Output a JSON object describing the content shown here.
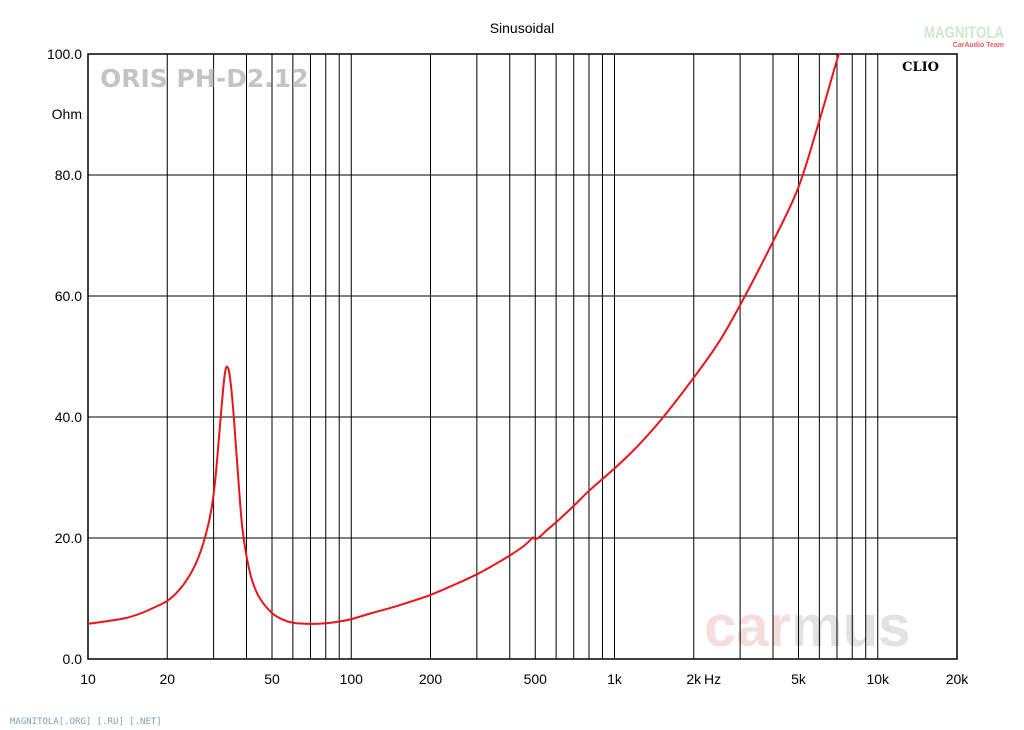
{
  "chart_data": {
    "type": "line",
    "title": "Sinusoidal",
    "ylabel": "Ohm",
    "xlabel": "Hz",
    "x_scale": "log",
    "xlim": [
      10,
      20000
    ],
    "ylim": [
      0,
      100
    ],
    "grid": true,
    "y_ticks": [
      "0.0",
      "20.0",
      "40.0",
      "60.0",
      "80.0",
      "100.0"
    ],
    "x_tick_labels": [
      {
        "value": 10,
        "label": "10"
      },
      {
        "value": 20,
        "label": "20"
      },
      {
        "value": 50,
        "label": "50"
      },
      {
        "value": 100,
        "label": "100"
      },
      {
        "value": 200,
        "label": "200"
      },
      {
        "value": 500,
        "label": "500"
      },
      {
        "value": 1000,
        "label": "1k"
      },
      {
        "value": 2000,
        "label": "2k"
      },
      {
        "value": 5000,
        "label": "5k"
      },
      {
        "value": 10000,
        "label": "10k"
      },
      {
        "value": 20000,
        "label": "20k"
      }
    ],
    "series": [
      {
        "color": "#e8141c",
        "points": [
          [
            10,
            5.8
          ],
          [
            12,
            6.3
          ],
          [
            14,
            6.8
          ],
          [
            16,
            7.6
          ],
          [
            18,
            8.6
          ],
          [
            20,
            9.6
          ],
          [
            22,
            11.2
          ],
          [
            24,
            13.4
          ],
          [
            26,
            16.3
          ],
          [
            28,
            20.5
          ],
          [
            29.5,
            25
          ],
          [
            30.5,
            30
          ],
          [
            31.5,
            37
          ],
          [
            32.5,
            44
          ],
          [
            33.2,
            47.5
          ],
          [
            33.8,
            48.3
          ],
          [
            34.5,
            47
          ],
          [
            35.5,
            42
          ],
          [
            36.5,
            35
          ],
          [
            37.5,
            28
          ],
          [
            38.5,
            22
          ],
          [
            40,
            17
          ],
          [
            42,
            13
          ],
          [
            45,
            10
          ],
          [
            50,
            7.6
          ],
          [
            55,
            6.5
          ],
          [
            60,
            6.0
          ],
          [
            70,
            5.8
          ],
          [
            80,
            5.9
          ],
          [
            90,
            6.2
          ],
          [
            100,
            6.6
          ],
          [
            120,
            7.6
          ],
          [
            150,
            8.8
          ],
          [
            200,
            10.6
          ],
          [
            250,
            12.4
          ],
          [
            300,
            14.0
          ],
          [
            350,
            15.6
          ],
          [
            400,
            17.1
          ],
          [
            450,
            18.6
          ],
          [
            480,
            19.7
          ],
          [
            490,
            20.1
          ],
          [
            500,
            19.8
          ],
          [
            520,
            20.2
          ],
          [
            550,
            21.2
          ],
          [
            600,
            22.6
          ],
          [
            700,
            25.3
          ],
          [
            800,
            27.8
          ],
          [
            1000,
            31.5
          ],
          [
            1200,
            34.8
          ],
          [
            1500,
            39.5
          ],
          [
            2000,
            46.5
          ],
          [
            2500,
            52.5
          ],
          [
            3000,
            58.5
          ],
          [
            4000,
            69
          ],
          [
            5000,
            78
          ],
          [
            6000,
            89
          ],
          [
            7000,
            99
          ],
          [
            7300,
            101.5
          ]
        ]
      }
    ],
    "annotations": [
      "CLIO",
      "ORIS PH-D2.12"
    ]
  },
  "watermarks": {
    "brand": "carmus",
    "logo": "MAGNITOLA",
    "logo_sub": "CarAudio Team",
    "footer": "MAGNITOLA[.ORG] [.RU] [.NET]"
  },
  "colors": {
    "curve": "#e8141c",
    "grid": "#000000",
    "brand_car": "#f5dddd",
    "brand_mus": "#e2e2e2"
  }
}
